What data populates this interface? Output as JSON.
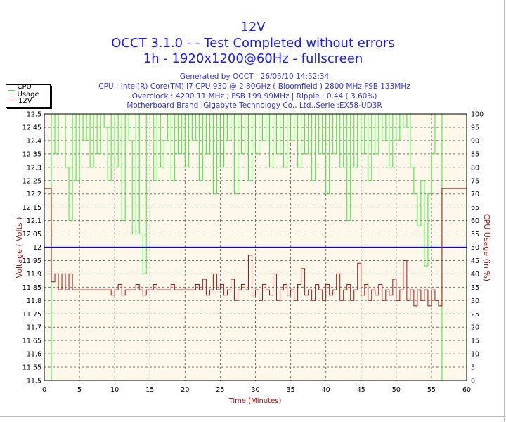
{
  "titles": [
    "12V",
    "OCCT 3.1.0 -  - Test Completed without errors",
    "1h - 1920x1200@60Hz - fullscreen"
  ],
  "subtitles": [
    "Generated by OCCT : 26/05/10 14:52:34",
    "CPU : Intel(R) Core(TM) i7 CPU 930 @ 2.80GHz ( Bloomfield ) 2800 MHz FSB 133MHz",
    "Overclock : 4200.11 MHz ; FSB 199.99MHz | Ripple : 0.44 ( 3.60%)",
    "Motherboard Brand :Gigabyte Technology Co., Ltd.,Serie :EX58-UD3R"
  ],
  "colors": {
    "title": "#1a1aff",
    "cpu": "#33ee33",
    "volt": "#aa1111",
    "reference": "#0000ff",
    "background": "#fdf8ea"
  },
  "chart_data": {
    "type": "line",
    "title": "12V",
    "xlabel": "Time (Minutes)",
    "ylabel": "Voltage ( Volts )",
    "y2label": "CPU Usage (in %)",
    "xlim": [
      0,
      60
    ],
    "ylim": [
      11.5,
      12.5
    ],
    "y2lim": [
      0,
      100
    ],
    "xticks": [
      "0",
      "5",
      "10",
      "15",
      "20",
      "25",
      "30",
      "35",
      "40",
      "45",
      "50",
      "55",
      "60"
    ],
    "yticks": [
      "11.5",
      "11.55",
      "11.6",
      "11.65",
      "11.7",
      "11.75",
      "11.8",
      "11.85",
      "11.9",
      "11.95",
      "12",
      "12.05",
      "12.1",
      "12.15",
      "12.2",
      "12.25",
      "12.3",
      "12.35",
      "12.4",
      "12.45",
      "12.5"
    ],
    "y2ticks": [
      "0",
      "5",
      "10",
      "15",
      "20",
      "25",
      "30",
      "35",
      "40",
      "45",
      "50",
      "55",
      "60",
      "65",
      "70",
      "75",
      "80",
      "85",
      "90",
      "95",
      "100"
    ],
    "grid": true,
    "legend": "top-left",
    "reference_line": 12,
    "x": [
      0,
      0.5,
      1,
      1.5,
      2,
      2.5,
      3,
      3.5,
      4,
      4.5,
      5,
      5.5,
      6,
      6.5,
      7,
      7.5,
      8,
      8.5,
      9,
      9.5,
      10,
      10.5,
      11,
      11.5,
      12,
      12.5,
      13,
      13.5,
      14,
      14.5,
      15,
      15.5,
      16,
      16.5,
      17,
      17.5,
      18,
      18.5,
      19,
      19.5,
      20,
      20.5,
      21,
      21.5,
      22,
      22.5,
      23,
      23.5,
      24,
      24.5,
      25,
      25.5,
      26,
      26.5,
      27,
      27.5,
      28,
      28.5,
      29,
      29.5,
      30,
      30.5,
      31,
      31.5,
      32,
      32.5,
      33,
      33.5,
      34,
      34.5,
      35,
      35.5,
      36,
      36.5,
      37,
      37.5,
      38,
      38.5,
      39,
      39.5,
      40,
      40.5,
      41,
      41.5,
      42,
      42.5,
      43,
      43.5,
      44,
      44.5,
      45,
      45.5,
      46,
      46.5,
      47,
      47.5,
      48,
      48.5,
      49,
      49.5,
      50,
      50.5,
      51,
      51.5,
      52,
      52.5,
      53,
      53.5,
      54,
      54.5,
      55,
      55.5,
      56,
      56.5,
      57,
      57.5,
      58,
      58.5,
      59,
      59.5,
      60
    ],
    "series": [
      {
        "name": "CPU Usage",
        "axis": "right",
        "values": [
          0,
          0,
          100,
          85,
          100,
          100,
          80,
          60,
          100,
          75,
          100,
          90,
          100,
          80,
          100,
          85,
          100,
          95,
          75,
          100,
          80,
          100,
          60,
          100,
          90,
          55,
          100,
          55,
          40,
          100,
          100,
          75,
          100,
          80,
          90,
          100,
          75,
          100,
          85,
          100,
          80,
          100,
          90,
          100,
          75,
          100,
          85,
          100,
          70,
          100,
          80,
          100,
          90,
          100,
          70,
          100,
          85,
          100,
          75,
          100,
          85,
          100,
          90,
          100,
          80,
          100,
          85,
          100,
          80,
          100,
          90,
          100,
          80,
          100,
          85,
          100,
          75,
          100,
          85,
          100,
          70,
          100,
          85,
          100,
          80,
          100,
          60,
          100,
          80,
          100,
          85,
          100,
          75,
          100,
          85,
          100,
          90,
          100,
          80,
          100,
          90,
          100,
          95,
          100,
          80,
          70,
          58,
          75,
          43,
          70,
          85,
          100,
          100,
          0,
          0,
          0,
          0,
          0,
          0,
          0,
          0
        ]
      },
      {
        "name": "12V",
        "axis": "left",
        "values": [
          12.22,
          12.22,
          11.87,
          11.9,
          11.84,
          11.9,
          11.84,
          11.9,
          11.84,
          11.84,
          11.84,
          11.84,
          11.84,
          11.84,
          11.84,
          11.84,
          11.84,
          11.84,
          11.84,
          11.82,
          11.84,
          11.86,
          11.82,
          11.84,
          11.84,
          11.84,
          11.86,
          11.84,
          11.82,
          11.84,
          11.84,
          11.86,
          11.84,
          11.84,
          11.84,
          11.84,
          11.86,
          11.84,
          11.84,
          11.84,
          11.84,
          11.84,
          11.84,
          11.86,
          11.84,
          11.88,
          11.82,
          11.84,
          11.9,
          11.84,
          11.86,
          11.82,
          11.84,
          11.88,
          11.8,
          11.84,
          11.86,
          11.84,
          11.97,
          11.82,
          11.84,
          11.8,
          11.86,
          11.84,
          11.82,
          11.9,
          11.8,
          11.84,
          11.86,
          11.82,
          11.84,
          11.8,
          11.86,
          11.92,
          11.82,
          11.84,
          11.8,
          11.86,
          11.84,
          11.8,
          11.86,
          11.82,
          11.84,
          11.9,
          11.8,
          11.84,
          11.86,
          11.8,
          11.84,
          11.94,
          11.82,
          11.86,
          11.8,
          11.84,
          11.82,
          11.86,
          11.8,
          11.84,
          11.82,
          11.88,
          11.8,
          11.84,
          11.95,
          11.8,
          11.84,
          11.78,
          11.84,
          11.8,
          11.84,
          11.78,
          11.84,
          11.8,
          11.78,
          12.22,
          12.22,
          12.22,
          12.22,
          12.22,
          12.22,
          12.22,
          12.22
        ]
      }
    ]
  }
}
